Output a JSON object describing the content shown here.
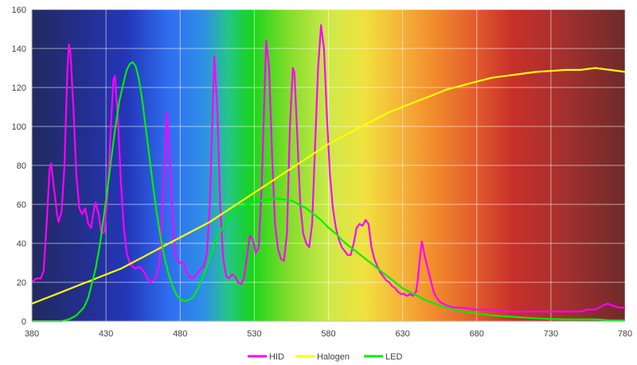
{
  "chart_data": {
    "type": "line",
    "title": "",
    "xlabel": "",
    "ylabel": "",
    "xlim": [
      380,
      780
    ],
    "ylim": [
      0,
      160
    ],
    "x_ticks": [
      380,
      430,
      480,
      530,
      580,
      630,
      680,
      730,
      780
    ],
    "y_ticks": [
      0,
      20,
      40,
      60,
      80,
      100,
      120,
      140,
      160
    ],
    "x_tick_labels": [
      "380",
      "430",
      "480",
      "530",
      "580",
      "630",
      "680",
      "730",
      "780"
    ],
    "y_tick_labels": [
      "0",
      "20",
      "40",
      "60",
      "80",
      "100",
      "120",
      "140",
      "160"
    ],
    "grid": true,
    "legend": "bottom",
    "background": "visible spectrum gradient",
    "series": [
      {
        "name": "HID",
        "color": "#ff00ff",
        "points": [
          [
            380,
            20
          ],
          [
            383,
            22
          ],
          [
            386,
            22
          ],
          [
            388,
            26
          ],
          [
            390,
            50
          ],
          [
            392,
            78
          ],
          [
            393,
            81
          ],
          [
            395,
            68
          ],
          [
            397,
            55
          ],
          [
            398,
            51
          ],
          [
            400,
            56
          ],
          [
            402,
            80
          ],
          [
            404,
            130
          ],
          [
            405,
            142
          ],
          [
            406,
            138
          ],
          [
            408,
            110
          ],
          [
            410,
            75
          ],
          [
            412,
            58
          ],
          [
            414,
            55
          ],
          [
            416,
            58
          ],
          [
            418,
            50
          ],
          [
            420,
            48
          ],
          [
            422,
            58
          ],
          [
            423,
            61
          ],
          [
            425,
            55
          ],
          [
            427,
            45
          ],
          [
            429,
            46
          ],
          [
            431,
            65
          ],
          [
            433,
            95
          ],
          [
            435,
            124
          ],
          [
            436,
            126
          ],
          [
            438,
            105
          ],
          [
            440,
            72
          ],
          [
            442,
            48
          ],
          [
            444,
            35
          ],
          [
            446,
            30
          ],
          [
            448,
            28
          ],
          [
            450,
            27
          ],
          [
            452,
            28
          ],
          [
            454,
            27
          ],
          [
            456,
            25
          ],
          [
            458,
            22
          ],
          [
            460,
            20
          ],
          [
            462,
            21
          ],
          [
            464,
            23
          ],
          [
            466,
            30
          ],
          [
            468,
            55
          ],
          [
            470,
            90
          ],
          [
            471,
            107
          ],
          [
            473,
            85
          ],
          [
            475,
            50
          ],
          [
            477,
            33
          ],
          [
            480,
            30
          ],
          [
            482,
            30
          ],
          [
            484,
            26
          ],
          [
            486,
            23
          ],
          [
            488,
            22
          ],
          [
            490,
            23
          ],
          [
            492,
            25
          ],
          [
            494,
            27
          ],
          [
            496,
            28
          ],
          [
            498,
            35
          ],
          [
            500,
            60
          ],
          [
            502,
            110
          ],
          [
            503,
            136
          ],
          [
            505,
            110
          ],
          [
            507,
            60
          ],
          [
            509,
            32
          ],
          [
            511,
            23
          ],
          [
            513,
            22
          ],
          [
            515,
            24
          ],
          [
            517,
            23
          ],
          [
            519,
            20
          ],
          [
            521,
            19
          ],
          [
            523,
            22
          ],
          [
            525,
            33
          ],
          [
            527,
            44
          ],
          [
            529,
            42
          ],
          [
            531,
            35
          ],
          [
            533,
            38
          ],
          [
            535,
            70
          ],
          [
            537,
            120
          ],
          [
            538,
            144
          ],
          [
            540,
            130
          ],
          [
            542,
            85
          ],
          [
            544,
            50
          ],
          [
            546,
            37
          ],
          [
            548,
            32
          ],
          [
            550,
            31
          ],
          [
            552,
            45
          ],
          [
            554,
            100
          ],
          [
            556,
            130
          ],
          [
            557,
            128
          ],
          [
            559,
            95
          ],
          [
            561,
            60
          ],
          [
            563,
            45
          ],
          [
            565,
            40
          ],
          [
            567,
            38
          ],
          [
            569,
            50
          ],
          [
            571,
            90
          ],
          [
            573,
            130
          ],
          [
            575,
            152
          ],
          [
            577,
            140
          ],
          [
            579,
            105
          ],
          [
            581,
            75
          ],
          [
            583,
            58
          ],
          [
            585,
            48
          ],
          [
            587,
            42
          ],
          [
            589,
            38
          ],
          [
            591,
            36
          ],
          [
            593,
            34
          ],
          [
            595,
            34
          ],
          [
            597,
            40
          ],
          [
            599,
            48
          ],
          [
            601,
            50
          ],
          [
            603,
            49
          ],
          [
            605,
            52
          ],
          [
            607,
            50
          ],
          [
            609,
            38
          ],
          [
            611,
            32
          ],
          [
            613,
            28
          ],
          [
            615,
            25
          ],
          [
            617,
            23
          ],
          [
            619,
            21
          ],
          [
            621,
            20
          ],
          [
            623,
            18
          ],
          [
            625,
            17
          ],
          [
            627,
            15
          ],
          [
            629,
            14
          ],
          [
            631,
            14
          ],
          [
            633,
            13
          ],
          [
            635,
            14
          ],
          [
            637,
            13
          ],
          [
            639,
            15
          ],
          [
            640,
            20
          ],
          [
            642,
            35
          ],
          [
            643,
            41
          ],
          [
            645,
            33
          ],
          [
            647,
            27
          ],
          [
            649,
            21
          ],
          [
            651,
            15
          ],
          [
            653,
            12
          ],
          [
            655,
            10
          ],
          [
            660,
            8
          ],
          [
            665,
            7
          ],
          [
            670,
            7
          ],
          [
            680,
            6
          ],
          [
            690,
            6
          ],
          [
            700,
            5
          ],
          [
            710,
            5
          ],
          [
            720,
            5
          ],
          [
            730,
            5
          ],
          [
            740,
            5
          ],
          [
            750,
            5
          ],
          [
            755,
            6
          ],
          [
            760,
            6
          ],
          [
            765,
            8
          ],
          [
            768,
            9
          ],
          [
            772,
            8
          ],
          [
            776,
            7
          ],
          [
            780,
            7
          ]
        ]
      },
      {
        "name": "Halogen",
        "color": "#ffff00",
        "points": [
          [
            380,
            9
          ],
          [
            390,
            12
          ],
          [
            400,
            15
          ],
          [
            410,
            18
          ],
          [
            420,
            21
          ],
          [
            430,
            24
          ],
          [
            440,
            27
          ],
          [
            450,
            31
          ],
          [
            460,
            35
          ],
          [
            470,
            39
          ],
          [
            480,
            43
          ],
          [
            490,
            47
          ],
          [
            500,
            51
          ],
          [
            510,
            56
          ],
          [
            520,
            61
          ],
          [
            530,
            66
          ],
          [
            540,
            71
          ],
          [
            550,
            76
          ],
          [
            560,
            81
          ],
          [
            570,
            86
          ],
          [
            580,
            91
          ],
          [
            590,
            95
          ],
          [
            600,
            99
          ],
          [
            610,
            103
          ],
          [
            620,
            107
          ],
          [
            630,
            110
          ],
          [
            640,
            113
          ],
          [
            650,
            116
          ],
          [
            660,
            119
          ],
          [
            670,
            121
          ],
          [
            680,
            123
          ],
          [
            690,
            125
          ],
          [
            700,
            126
          ],
          [
            710,
            127
          ],
          [
            720,
            128
          ],
          [
            730,
            128.5
          ],
          [
            740,
            129
          ],
          [
            750,
            129
          ],
          [
            760,
            130
          ],
          [
            770,
            129
          ],
          [
            780,
            128
          ]
        ]
      },
      {
        "name": "LED",
        "color": "#00ee00",
        "points": [
          [
            380,
            0
          ],
          [
            390,
            0
          ],
          [
            400,
            0
          ],
          [
            405,
            1
          ],
          [
            410,
            3
          ],
          [
            415,
            7
          ],
          [
            418,
            12
          ],
          [
            420,
            18
          ],
          [
            423,
            27
          ],
          [
            426,
            40
          ],
          [
            430,
            62
          ],
          [
            433,
            80
          ],
          [
            436,
            98
          ],
          [
            439,
            113
          ],
          [
            442,
            123
          ],
          [
            444,
            129
          ],
          [
            446,
            132
          ],
          [
            448,
            133
          ],
          [
            450,
            131
          ],
          [
            452,
            125
          ],
          [
            454,
            116
          ],
          [
            456,
            104
          ],
          [
            458,
            92
          ],
          [
            460,
            80
          ],
          [
            462,
            68
          ],
          [
            464,
            57
          ],
          [
            466,
            47
          ],
          [
            468,
            38
          ],
          [
            470,
            31
          ],
          [
            472,
            25
          ],
          [
            474,
            20
          ],
          [
            476,
            16
          ],
          [
            478,
            13
          ],
          [
            480,
            11.5
          ],
          [
            482,
            10.5
          ],
          [
            484,
            10.5
          ],
          [
            486,
            11
          ],
          [
            488,
            12
          ],
          [
            490,
            14
          ],
          [
            492,
            17
          ],
          [
            495,
            22
          ],
          [
            498,
            28
          ],
          [
            500,
            33
          ],
          [
            505,
            43
          ],
          [
            510,
            50
          ],
          [
            515,
            55
          ],
          [
            520,
            58
          ],
          [
            525,
            60
          ],
          [
            530,
            61
          ],
          [
            535,
            62
          ],
          [
            540,
            62.5
          ],
          [
            545,
            63
          ],
          [
            550,
            62.5
          ],
          [
            555,
            62
          ],
          [
            560,
            60
          ],
          [
            565,
            58
          ],
          [
            570,
            55
          ],
          [
            575,
            52
          ],
          [
            580,
            48
          ],
          [
            585,
            45
          ],
          [
            590,
            41
          ],
          [
            595,
            38
          ],
          [
            600,
            35
          ],
          [
            605,
            32
          ],
          [
            610,
            29
          ],
          [
            615,
            26
          ],
          [
            620,
            23
          ],
          [
            625,
            20
          ],
          [
            630,
            17
          ],
          [
            635,
            15
          ],
          [
            640,
            13
          ],
          [
            645,
            11
          ],
          [
            650,
            9.5
          ],
          [
            655,
            8
          ],
          [
            660,
            7
          ],
          [
            665,
            6
          ],
          [
            670,
            5
          ],
          [
            680,
            4
          ],
          [
            690,
            3
          ],
          [
            700,
            2.5
          ],
          [
            710,
            2
          ],
          [
            720,
            1.5
          ],
          [
            730,
            1.2
          ],
          [
            740,
            1
          ],
          [
            750,
            1
          ],
          [
            760,
            1
          ],
          [
            770,
            0.5
          ],
          [
            780,
            0.5
          ]
        ]
      }
    ]
  }
}
